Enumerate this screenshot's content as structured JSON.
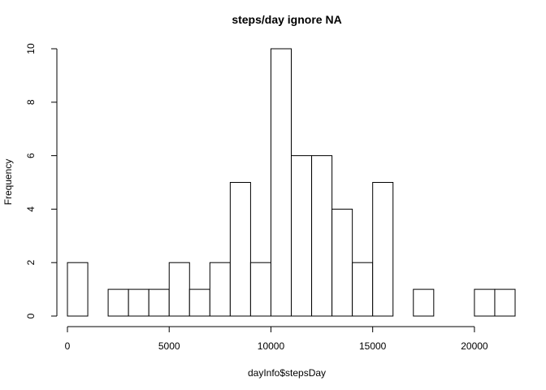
{
  "chart_data": {
    "type": "bar",
    "title": "steps/day ignore NA",
    "xlabel": "dayInfo$stepsDay",
    "ylabel": "Frequency",
    "bin_width": 1000,
    "bins": [
      {
        "start": 0,
        "end": 1000,
        "count": 2
      },
      {
        "start": 1000,
        "end": 2000,
        "count": 0
      },
      {
        "start": 2000,
        "end": 3000,
        "count": 1
      },
      {
        "start": 3000,
        "end": 4000,
        "count": 1
      },
      {
        "start": 4000,
        "end": 5000,
        "count": 1
      },
      {
        "start": 5000,
        "end": 6000,
        "count": 2
      },
      {
        "start": 6000,
        "end": 7000,
        "count": 1
      },
      {
        "start": 7000,
        "end": 8000,
        "count": 2
      },
      {
        "start": 8000,
        "end": 9000,
        "count": 5
      },
      {
        "start": 9000,
        "end": 10000,
        "count": 2
      },
      {
        "start": 10000,
        "end": 11000,
        "count": 10
      },
      {
        "start": 11000,
        "end": 12000,
        "count": 6
      },
      {
        "start": 12000,
        "end": 13000,
        "count": 6
      },
      {
        "start": 13000,
        "end": 14000,
        "count": 4
      },
      {
        "start": 14000,
        "end": 15000,
        "count": 2
      },
      {
        "start": 15000,
        "end": 16000,
        "count": 5
      },
      {
        "start": 16000,
        "end": 17000,
        "count": 0
      },
      {
        "start": 17000,
        "end": 18000,
        "count": 1
      },
      {
        "start": 18000,
        "end": 19000,
        "count": 0
      },
      {
        "start": 19000,
        "end": 20000,
        "count": 0
      },
      {
        "start": 20000,
        "end": 21000,
        "count": 1
      },
      {
        "start": 21000,
        "end": 22000,
        "count": 1
      }
    ],
    "xlim": [
      0,
      22000
    ],
    "ylim": [
      0,
      10
    ],
    "x_ticks": [
      0,
      5000,
      10000,
      15000,
      20000
    ],
    "x_tick_labels": [
      "0",
      "5000",
      "10000",
      "15000",
      "20000"
    ],
    "y_ticks": [
      0,
      2,
      4,
      6,
      8,
      10
    ],
    "y_tick_labels": [
      "0",
      "2",
      "4",
      "6",
      "8",
      "10"
    ],
    "grid": false,
    "legend": false
  }
}
